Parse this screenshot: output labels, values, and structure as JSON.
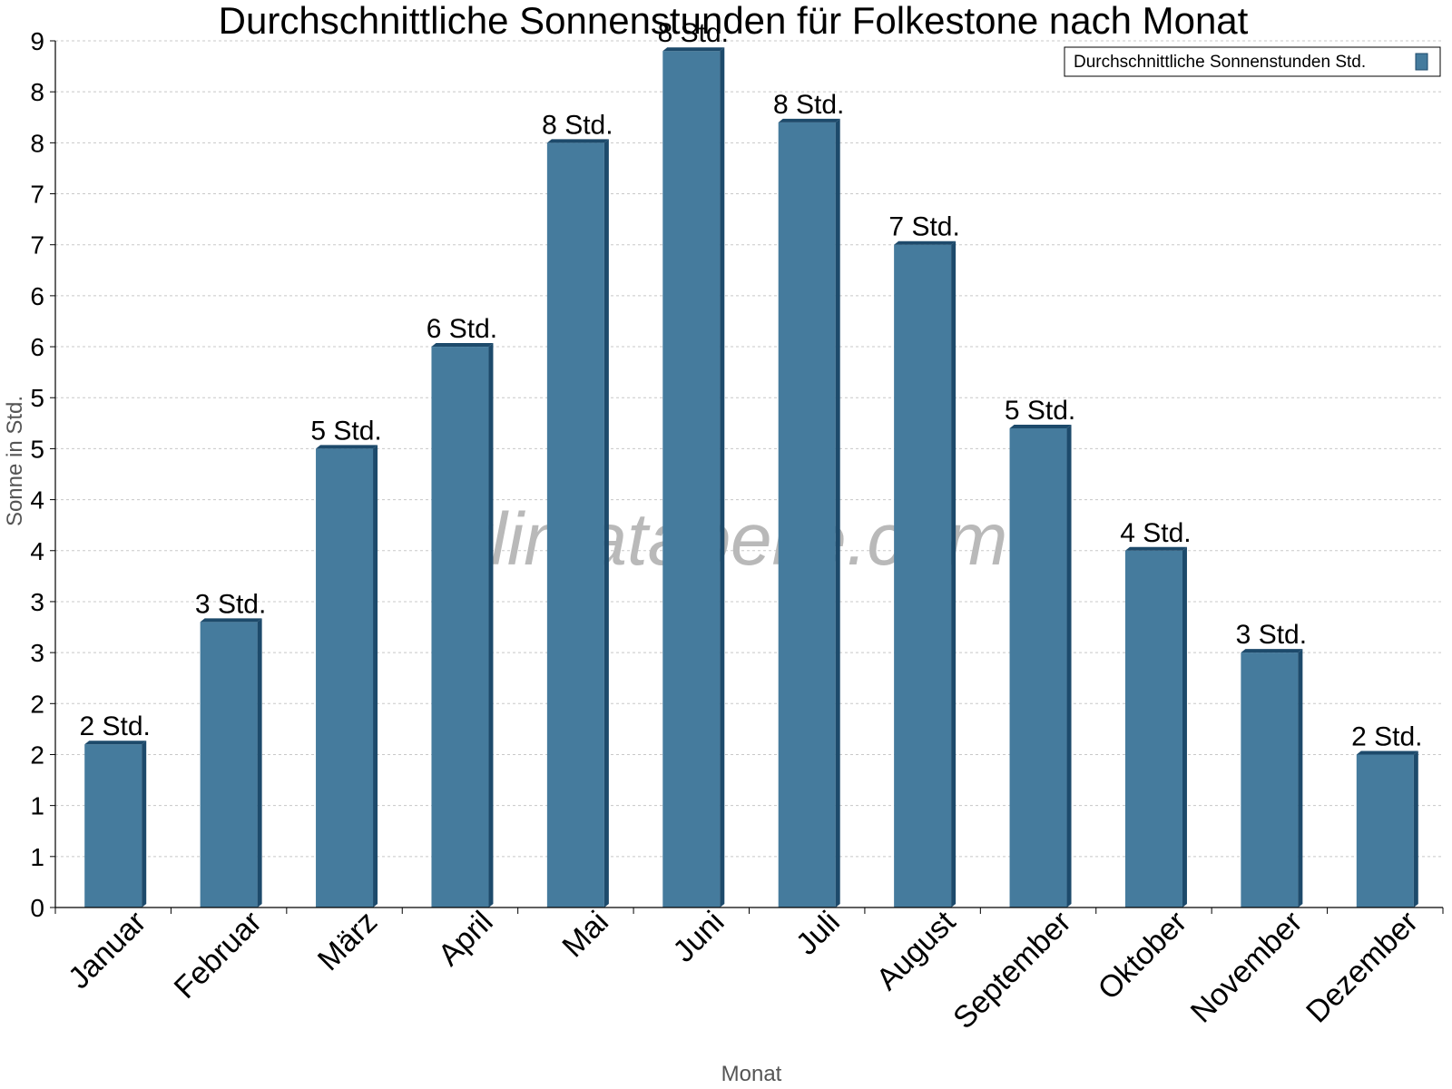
{
  "chart_data": {
    "type": "bar",
    "title": "Durchschnittliche Sonnenstunden für Folkestone nach Monat",
    "xlabel": "Monat",
    "ylabel": "Sonne in Std.",
    "categories": [
      "Januar",
      "Februar",
      "März",
      "April",
      "Mai",
      "Juni",
      "Juli",
      "August",
      "September",
      "Oktober",
      "November",
      "Dezember"
    ],
    "series": [
      {
        "name": "Durchschnittliche Sonnenstunden Std.",
        "values": [
          1.6,
          2.8,
          4.5,
          5.5,
          7.5,
          8.4,
          7.7,
          6.5,
          4.7,
          3.5,
          2.5,
          1.5
        ],
        "data_labels": [
          "2 Std.",
          "3 Std.",
          "5 Std.",
          "6 Std.",
          "8 Std.",
          "8 Std.",
          "8 Std.",
          "7 Std.",
          "5 Std.",
          "4 Std.",
          "3 Std.",
          "2 Std."
        ]
      }
    ],
    "ylim": [
      0,
      8.5
    ],
    "y_tick_values": [
      0,
      0.5,
      1,
      1.5,
      2,
      2.5,
      3,
      3.5,
      4,
      4.5,
      5,
      5.5,
      6,
      6.5,
      7,
      7.5,
      8,
      8.5
    ],
    "y_tick_labels": [
      "0",
      "1",
      "1",
      "2",
      "2",
      "3",
      "3",
      "4",
      "4",
      "5",
      "5",
      "6",
      "6",
      "7",
      "7",
      "8",
      "8",
      "9"
    ],
    "grid": true,
    "legend_position": "top-right",
    "colors": {
      "bar": "#457b9d",
      "bar_side": "#1d4a6b",
      "bar_top": "#1d4a6b"
    }
  },
  "watermark": "klimatabelle.com"
}
